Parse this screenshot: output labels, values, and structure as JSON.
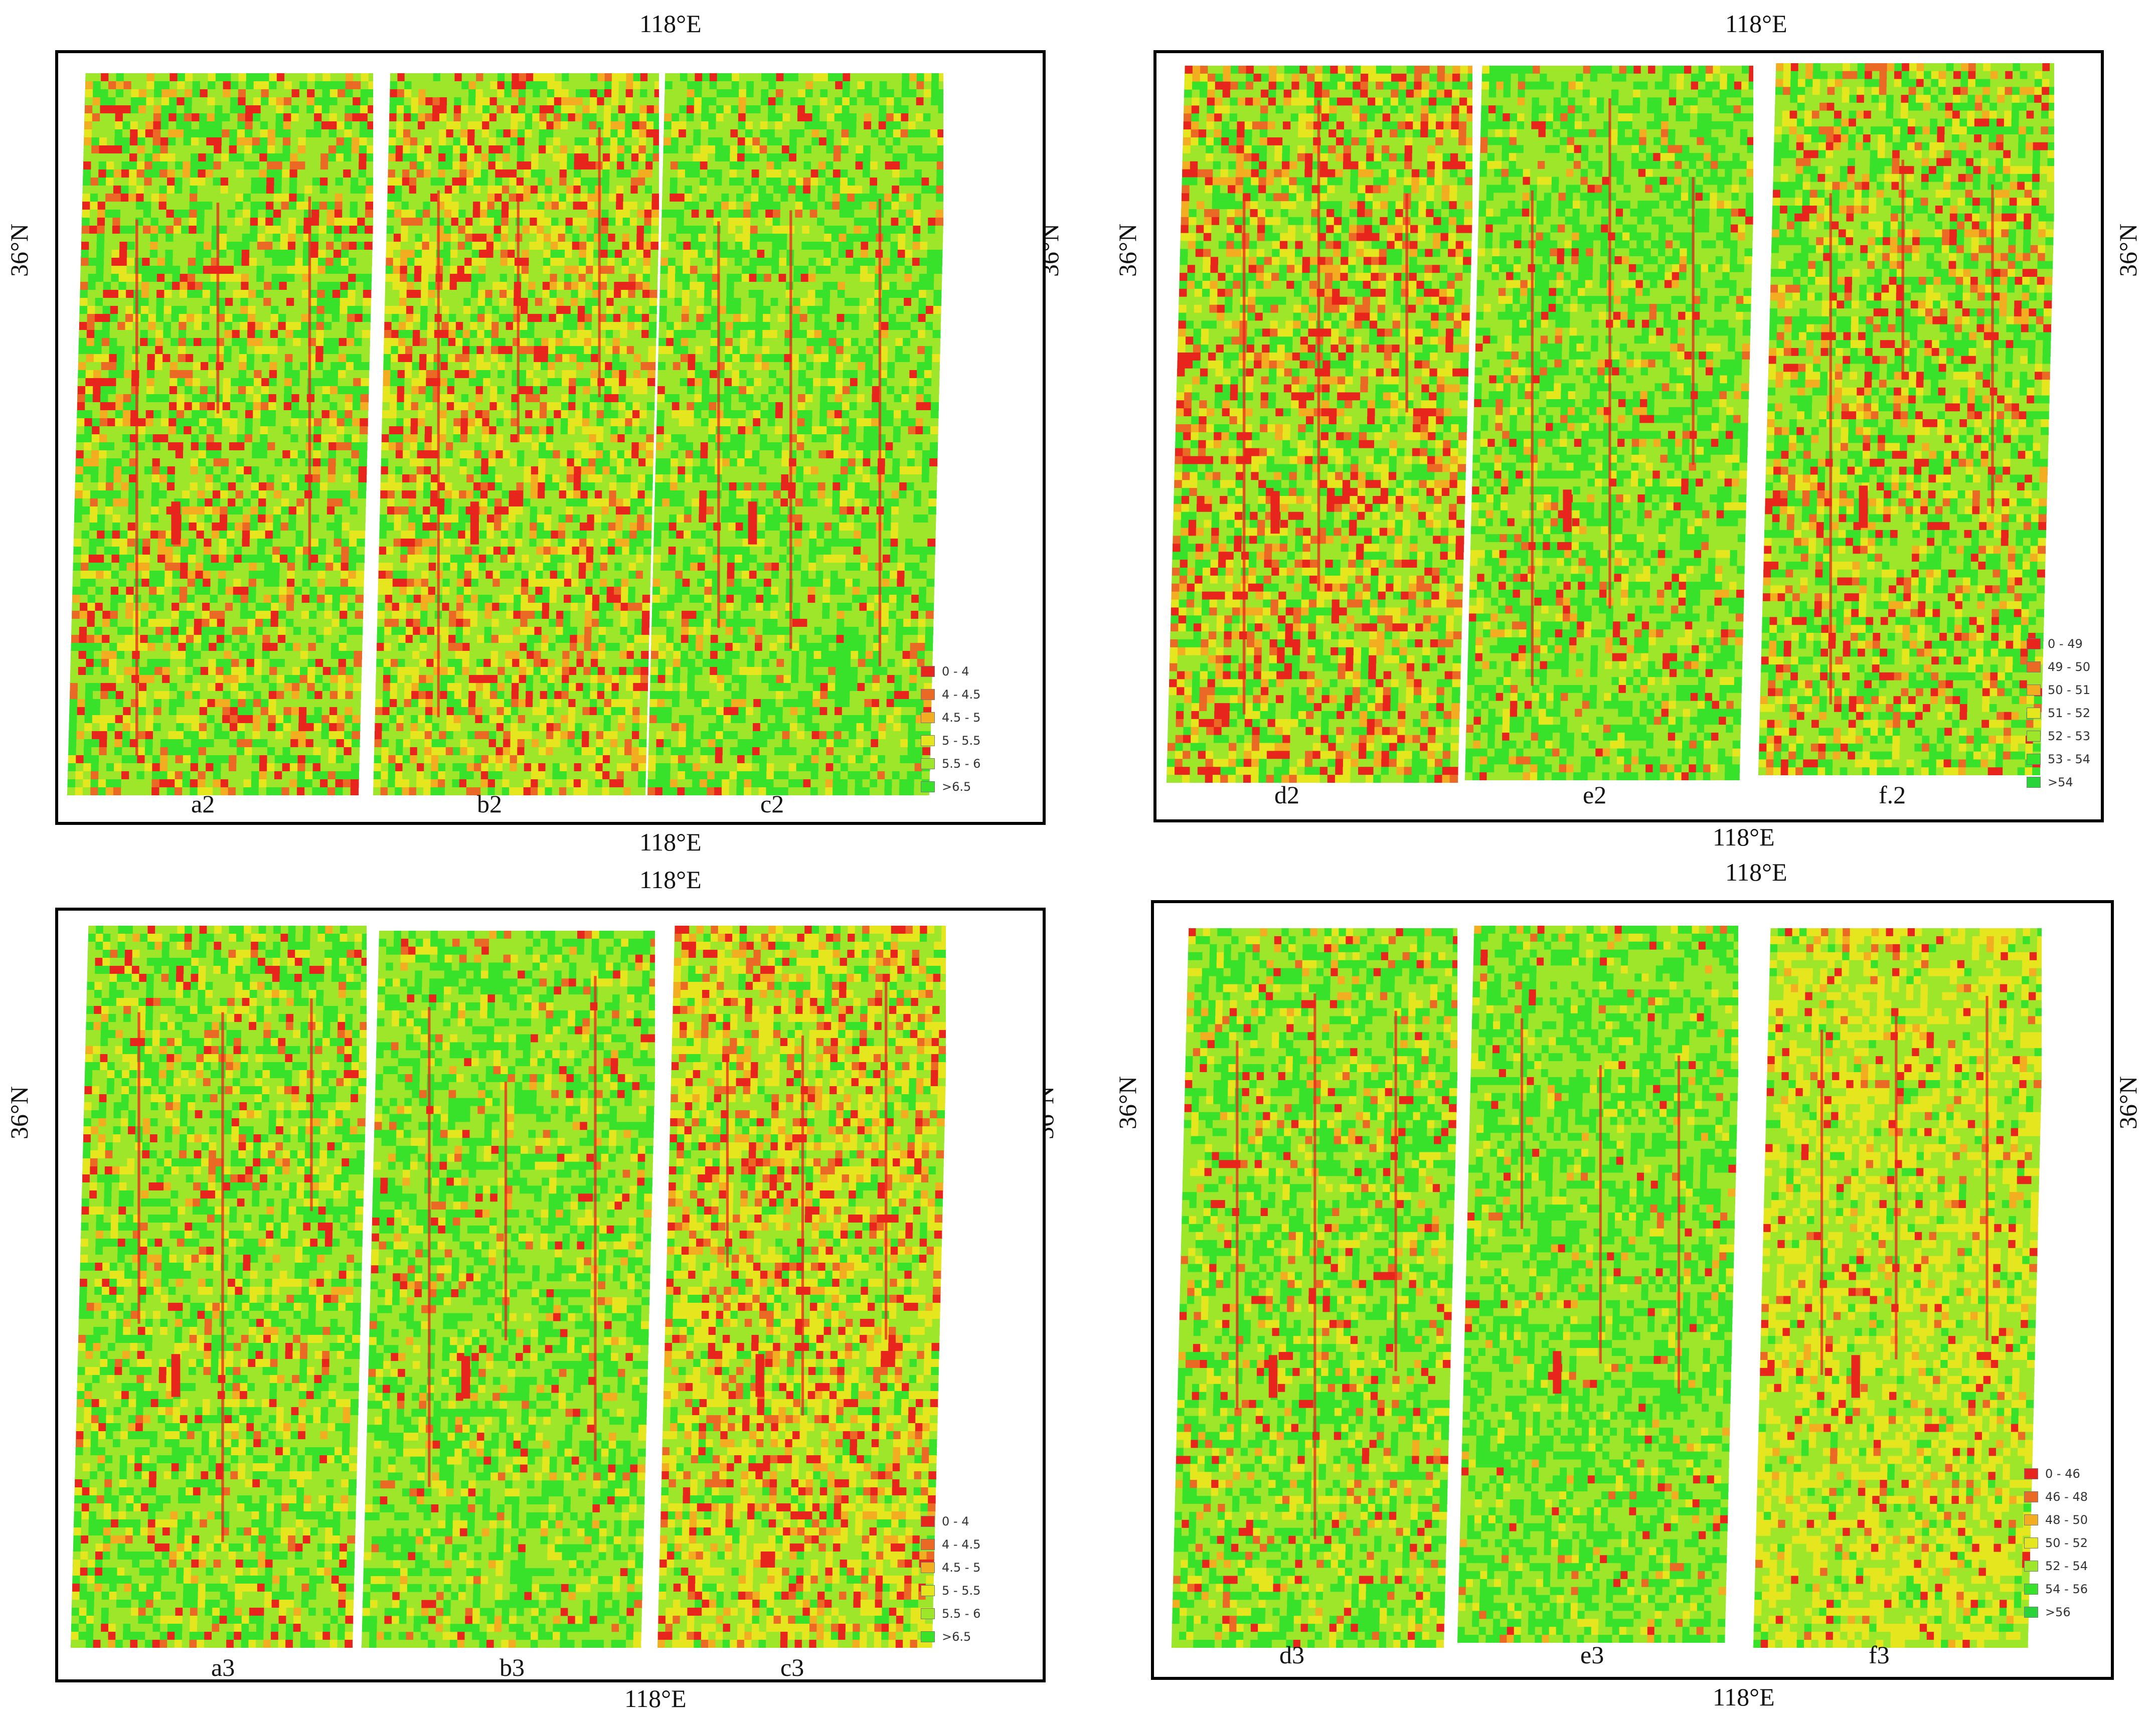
{
  "coords": {
    "lon_label": "118°E",
    "lat_label": "36°N"
  },
  "colors": {
    "c0": "#e8251c",
    "c1": "#ea6a25",
    "c2": "#f2ad20",
    "c3": "#e5e61e",
    "c4": "#9ee62a",
    "c5": "#38e12a",
    "bg": "#ffffff",
    "frame": "#000000"
  },
  "panels": [
    {
      "id": "top-left",
      "strips": [
        {
          "label": "a2",
          "mix": [
            0.55,
            0.25,
            0.2
          ],
          "spots": true
        },
        {
          "label": "b2",
          "mix": [
            0.35,
            0.4,
            0.25
          ],
          "spots": true
        },
        {
          "label": "c2",
          "mix": [
            0.7,
            0.2,
            0.1
          ],
          "spots": true
        }
      ],
      "legend": {
        "items": [
          "0 - 4",
          "4 - 4.5",
          "4.5 - 5",
          "5 - 5.5",
          "5.5 - 6",
          ">6.5"
        ],
        "swatch_colors": [
          "#e8251c",
          "#ea6a25",
          "#f2ad20",
          "#e5e61e",
          "#9ee62a",
          "#38e12a"
        ]
      }
    },
    {
      "id": "top-right",
      "strips": [
        {
          "label": "d2",
          "mix": [
            0.4,
            0.3,
            0.3
          ],
          "spots": true
        },
        {
          "label": "e2",
          "mix": [
            0.75,
            0.15,
            0.1
          ],
          "spots": true
        },
        {
          "label": "f.2",
          "mix": [
            0.55,
            0.25,
            0.2
          ],
          "spots": true
        }
      ],
      "legend": {
        "items": [
          "0 - 49",
          "49 - 50",
          "50 - 51",
          "51 - 52",
          "52 - 53",
          "53 - 54",
          ">54"
        ],
        "swatch_colors": [
          "#e8251c",
          "#ea6a25",
          "#f2ad20",
          "#e5e61e",
          "#9ee62a",
          "#38e12a",
          "#28d43a"
        ]
      }
    },
    {
      "id": "bottom-left",
      "strips": [
        {
          "label": "a3",
          "mix": [
            0.6,
            0.28,
            0.12
          ],
          "spots": true
        },
        {
          "label": "b3",
          "mix": [
            0.72,
            0.2,
            0.08
          ],
          "spots": true
        },
        {
          "label": "c3",
          "mix": [
            0.2,
            0.55,
            0.25
          ],
          "spots": true
        }
      ],
      "legend": {
        "items": [
          "0 - 4",
          "4 - 4.5",
          "4.5 - 5",
          "5 - 5.5",
          "5.5 - 6",
          ">6.5"
        ],
        "swatch_colors": [
          "#e8251c",
          "#ea6a25",
          "#f2ad20",
          "#e5e61e",
          "#9ee62a",
          "#38e12a"
        ]
      }
    },
    {
      "id": "bottom-right",
      "strips": [
        {
          "label": "d3",
          "mix": [
            0.65,
            0.23,
            0.12
          ],
          "spots": true
        },
        {
          "label": "e3",
          "mix": [
            0.85,
            0.1,
            0.05
          ],
          "spots": true
        },
        {
          "label": "f3",
          "mix": [
            0.15,
            0.75,
            0.1
          ],
          "spots": true
        }
      ],
      "legend": {
        "items": [
          "0 - 46",
          "46 - 48",
          "48 - 50",
          "50 - 52",
          "52 - 54",
          "54 - 56",
          ">56"
        ],
        "swatch_colors": [
          "#e8251c",
          "#ea6a25",
          "#f2ad20",
          "#e5e61e",
          "#9ee62a",
          "#38e12a",
          "#28d43a"
        ]
      }
    }
  ]
}
